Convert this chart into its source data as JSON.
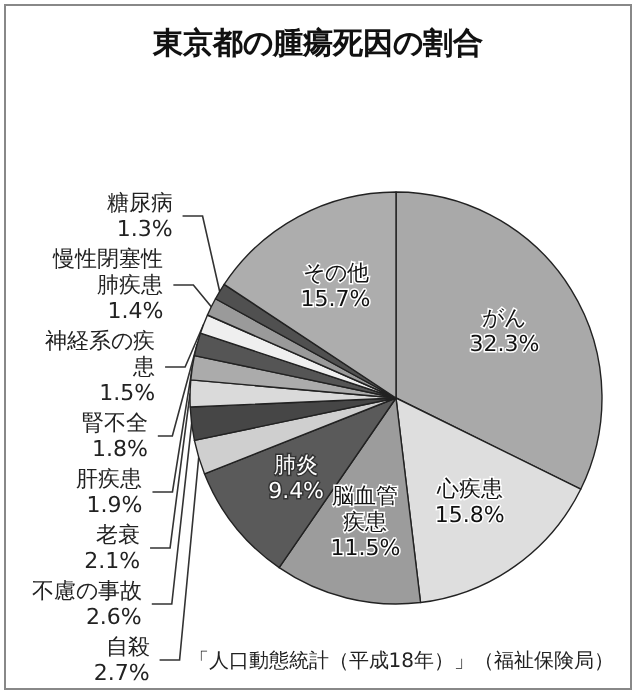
{
  "chart_data": {
    "type": "pie",
    "title": "東京都の腫瘍死因の割合",
    "categories": [
      "がん",
      "心疾患",
      "脳血管疾患",
      "肺炎",
      "自殺",
      "不慮の事故",
      "老衰",
      "肝疾患",
      "腎不全",
      "神経系の疾患",
      "慢性閉塞性肺疾患",
      "糖尿病",
      "その他"
    ],
    "values": [
      32.3,
      15.8,
      11.5,
      9.4,
      2.7,
      2.6,
      2.1,
      1.9,
      1.8,
      1.5,
      1.4,
      1.3,
      15.7
    ],
    "value_labels": [
      "32.3%",
      "15.8%",
      "11.5%",
      "9.4%",
      "2.7%",
      "2.6%",
      "2.1%",
      "1.9%",
      "1.8%",
      "1.5%",
      "1.4%",
      "1.3%",
      "15.7%"
    ],
    "colors": [
      "#a9a9a9",
      "#dedede",
      "#9c9c9c",
      "#5a5a5a",
      "#cfcfcf",
      "#464646",
      "#dadada",
      "#ababab",
      "#555555",
      "#efefef",
      "#9a9a9a",
      "#505050",
      "#adadad"
    ],
    "annotations": [
      "「人口動態統計（平成18年）」（福祉保険局）"
    ],
    "legend": false
  }
}
